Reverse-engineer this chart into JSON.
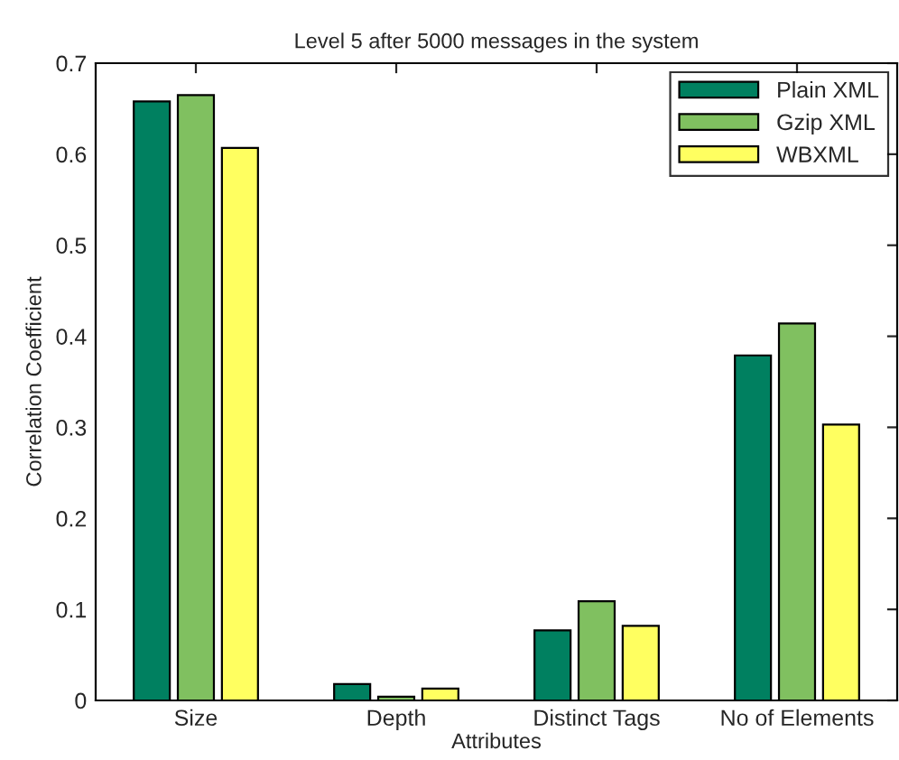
{
  "chart_data": {
    "type": "bar",
    "title": "Level 5 after 5000 messages in the system",
    "xlabel": "Attributes",
    "ylabel": "Correlation Coefficient",
    "categories": [
      "Size",
      "Depth",
      "Distinct Tags",
      "No of Elements"
    ],
    "series": [
      {
        "name": "Plain XML",
        "color": "#008060",
        "values": [
          0.658,
          0.018,
          0.077,
          0.379
        ]
      },
      {
        "name": "Gzip XML",
        "color": "#80c060",
        "values": [
          0.665,
          0.004,
          0.109,
          0.414
        ]
      },
      {
        "name": "WBXML",
        "color": "#ffff60",
        "values": [
          0.607,
          0.013,
          0.082,
          0.303
        ]
      }
    ],
    "ylim": [
      0,
      0.7
    ],
    "yticks": [
      0,
      0.1,
      0.2,
      0.3,
      0.4,
      0.5,
      0.6,
      0.7
    ],
    "grid": false,
    "legend": "top right"
  }
}
